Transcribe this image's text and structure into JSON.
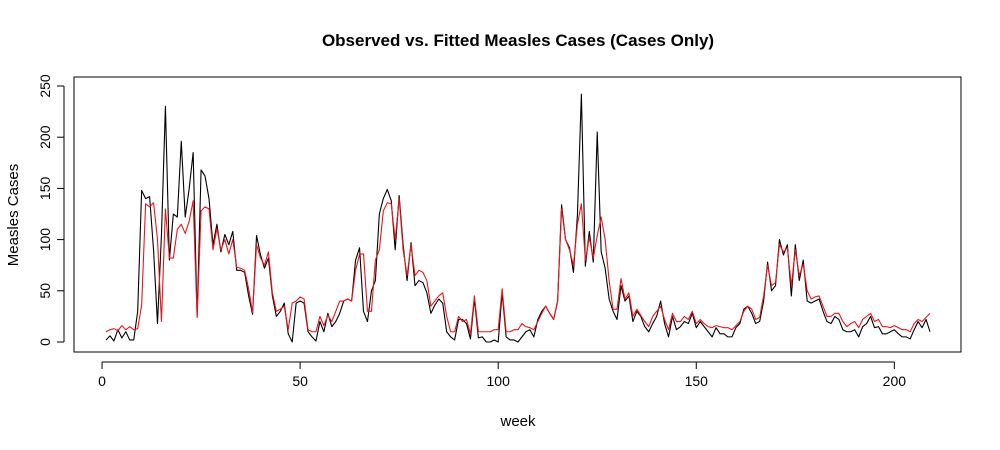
{
  "chart_data": {
    "type": "line",
    "title": "Observed vs. Fitted Measles Cases (Cases Only)",
    "xlabel": "week",
    "ylabel": "Measles Cases",
    "xlim": [
      1,
      209
    ],
    "ylim": [
      0,
      250
    ],
    "x_ticks": [
      0,
      50,
      100,
      150,
      200
    ],
    "y_ticks": [
      0,
      50,
      100,
      150,
      200,
      250
    ],
    "grid": false,
    "legend": "none",
    "colors": {
      "observed": "#000000",
      "fitted": "#e8161b"
    },
    "x": [
      1,
      2,
      3,
      4,
      5,
      6,
      7,
      8,
      9,
      10,
      11,
      12,
      13,
      14,
      15,
      16,
      17,
      18,
      19,
      20,
      21,
      22,
      23,
      24,
      25,
      26,
      27,
      28,
      29,
      30,
      31,
      32,
      33,
      34,
      35,
      36,
      37,
      38,
      39,
      40,
      41,
      42,
      43,
      44,
      45,
      46,
      47,
      48,
      49,
      50,
      51,
      52,
      53,
      54,
      55,
      56,
      57,
      58,
      59,
      60,
      61,
      62,
      63,
      64,
      65,
      66,
      67,
      68,
      69,
      70,
      71,
      72,
      73,
      74,
      75,
      76,
      77,
      78,
      79,
      80,
      81,
      82,
      83,
      84,
      85,
      86,
      87,
      88,
      89,
      90,
      91,
      92,
      93,
      94,
      95,
      96,
      97,
      98,
      99,
      100,
      101,
      102,
      103,
      104,
      105,
      106,
      107,
      108,
      109,
      110,
      111,
      112,
      113,
      114,
      115,
      116,
      117,
      118,
      119,
      120,
      121,
      122,
      123,
      124,
      125,
      126,
      127,
      128,
      129,
      130,
      131,
      132,
      133,
      134,
      135,
      136,
      137,
      138,
      139,
      140,
      141,
      142,
      143,
      144,
      145,
      146,
      147,
      148,
      149,
      150,
      151,
      152,
      153,
      154,
      155,
      156,
      157,
      158,
      159,
      160,
      161,
      162,
      163,
      164,
      165,
      166,
      167,
      168,
      169,
      170,
      171,
      172,
      173,
      174,
      175,
      176,
      177,
      178,
      179,
      180,
      181,
      182,
      183,
      184,
      185,
      186,
      187,
      188,
      189,
      190,
      191,
      192,
      193,
      194,
      195,
      196,
      197,
      198,
      199,
      200,
      201,
      202,
      203,
      204,
      205,
      206,
      207,
      208,
      209
    ],
    "series": [
      {
        "values": [
          2,
          6,
          1,
          12,
          4,
          10,
          2,
          2,
          30,
          148,
          140,
          142,
          90,
          18,
          105,
          230,
          80,
          125,
          122,
          196,
          122,
          150,
          185,
          25,
          168,
          162,
          140,
          95,
          115,
          88,
          105,
          95,
          108,
          70,
          70,
          68,
          45,
          27,
          104,
          85,
          72,
          82,
          45,
          25,
          30,
          38,
          8,
          0,
          38,
          40,
          38,
          10,
          5,
          1,
          20,
          10,
          28,
          15,
          20,
          28,
          40,
          42,
          40,
          80,
          92,
          30,
          20,
          50,
          60,
          125,
          140,
          149,
          138,
          90,
          143,
          95,
          60,
          97,
          55,
          60,
          58,
          48,
          28,
          36,
          42,
          38,
          10,
          5,
          2,
          22,
          22,
          18,
          3,
          42,
          4,
          5,
          0,
          0,
          2,
          0,
          48,
          5,
          2,
          2,
          0,
          5,
          10,
          12,
          5,
          22,
          30,
          35,
          28,
          22,
          40,
          134,
          100,
          92,
          68,
          124,
          242,
          74,
          108,
          78,
          205,
          88,
          72,
          42,
          30,
          22,
          55,
          40,
          45,
          20,
          30,
          25,
          15,
          10,
          18,
          25,
          40,
          18,
          5,
          25,
          12,
          15,
          20,
          18,
          28,
          14,
          20,
          15,
          10,
          5,
          14,
          8,
          8,
          5,
          5,
          14,
          18,
          32,
          35,
          28,
          18,
          20,
          40,
          78,
          50,
          55,
          100,
          85,
          95,
          45,
          95,
          60,
          80,
          40,
          38,
          40,
          42,
          30,
          20,
          18,
          25,
          22,
          12,
          10,
          10,
          12,
          5,
          15,
          18,
          25,
          14,
          15,
          8,
          8,
          10,
          12,
          8,
          5,
          5,
          3,
          12,
          20,
          14,
          22,
          10
        ]
      },
      {
        "values": [
          10,
          12,
          13,
          11,
          16,
          12,
          15,
          12,
          13,
          36,
          135,
          132,
          136,
          100,
          20,
          130,
          82,
          82,
          110,
          115,
          106,
          118,
          138,
          24,
          128,
          132,
          130,
          90,
          111,
          90,
          100,
          86,
          100,
          73,
          72,
          70,
          52,
          29,
          95,
          82,
          75,
          88,
          48,
          30,
          32,
          35,
          12,
          38,
          40,
          44,
          42,
          12,
          10,
          10,
          25,
          16,
          26,
          20,
          30,
          40,
          40,
          42,
          40,
          70,
          86,
          86,
          30,
          30,
          80,
          90,
          128,
          136,
          135,
          100,
          140,
          90,
          65,
          95,
          65,
          70,
          68,
          60,
          35,
          40,
          45,
          48,
          25,
          10,
          10,
          25,
          20,
          22,
          8,
          45,
          10,
          10,
          10,
          10,
          12,
          12,
          52,
          10,
          10,
          12,
          12,
          18,
          15,
          14,
          12,
          20,
          28,
          35,
          28,
          22,
          40,
          130,
          100,
          90,
          75,
          115,
          135,
          80,
          102,
          82,
          104,
          122,
          100,
          60,
          32,
          32,
          62,
          42,
          48,
          25,
          32,
          26,
          20,
          15,
          25,
          30,
          35,
          22,
          12,
          28,
          20,
          20,
          25,
          22,
          30,
          18,
          22,
          18,
          15,
          14,
          16,
          15,
          14,
          14,
          12,
          16,
          20,
          30,
          35,
          32,
          22,
          24,
          45,
          75,
          55,
          58,
          95,
          88,
          92,
          55,
          90,
          65,
          76,
          50,
          42,
          44,
          45,
          35,
          25,
          25,
          28,
          28,
          20,
          15,
          18,
          20,
          14,
          22,
          25,
          28,
          20,
          22,
          15,
          15,
          14,
          16,
          14,
          12,
          12,
          10,
          18,
          22,
          20,
          24,
          28
        ]
      }
    ]
  }
}
